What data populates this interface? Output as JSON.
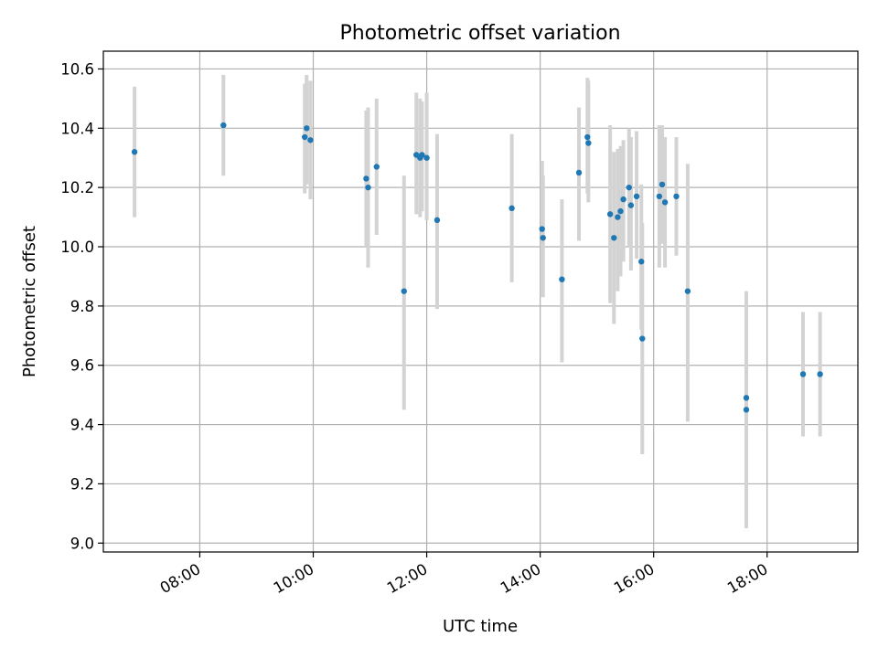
{
  "chart_data": {
    "type": "scatter",
    "title": "Photometric offset variation",
    "xlabel": "UTC time",
    "ylabel": "Photometric offset",
    "x_tick_labels": [
      "08:00",
      "10:00",
      "12:00",
      "14:00",
      "16:00",
      "18:00"
    ],
    "y_tick_labels": [
      "9.0",
      "9.2",
      "9.4",
      "9.6",
      "9.8",
      "10.0",
      "10.2",
      "10.4",
      "10.6"
    ],
    "x_ticks": [
      "08:00",
      "10:00",
      "12:00",
      "14:00",
      "16:00",
      "18:00"
    ],
    "y_ticks": [
      9.0,
      9.2,
      9.4,
      9.6,
      9.8,
      10.0,
      10.2,
      10.4,
      10.6
    ],
    "xlim": [
      "06:18",
      "19:36"
    ],
    "ylim": [
      8.97,
      10.66
    ],
    "grid": true,
    "colors": {
      "point": "#1f77b4",
      "errorbar": "#d3d3d3",
      "grid": "#b0b0b0"
    },
    "points": [
      {
        "x": "06:51",
        "y": 10.32,
        "err_low": 10.1,
        "err_high": 10.54
      },
      {
        "x": "08:25",
        "y": 10.41,
        "err_low": 10.24,
        "err_high": 10.58
      },
      {
        "x": "09:51",
        "y": 10.37,
        "err_low": 10.18,
        "err_high": 10.55
      },
      {
        "x": "09:53",
        "y": 10.4,
        "err_low": 10.21,
        "err_high": 10.58
      },
      {
        "x": "09:57",
        "y": 10.36,
        "err_low": 10.16,
        "err_high": 10.56
      },
      {
        "x": "10:56",
        "y": 10.23,
        "err_low": 10.0,
        "err_high": 10.46
      },
      {
        "x": "10:58",
        "y": 10.2,
        "err_low": 9.93,
        "err_high": 10.47
      },
      {
        "x": "11:07",
        "y": 10.27,
        "err_low": 10.04,
        "err_high": 10.5
      },
      {
        "x": "11:36",
        "y": 9.85,
        "err_low": 9.45,
        "err_high": 10.24
      },
      {
        "x": "11:49",
        "y": 10.31,
        "err_low": 10.11,
        "err_high": 10.52
      },
      {
        "x": "11:53",
        "y": 10.3,
        "err_low": 10.1,
        "err_high": 10.5
      },
      {
        "x": "11:55",
        "y": 10.31,
        "err_low": 10.12,
        "err_high": 10.49
      },
      {
        "x": "12:00",
        "y": 10.3,
        "err_low": 10.09,
        "err_high": 10.52
      },
      {
        "x": "12:11",
        "y": 10.09,
        "err_low": 9.79,
        "err_high": 10.38
      },
      {
        "x": "13:30",
        "y": 10.13,
        "err_low": 9.88,
        "err_high": 10.38
      },
      {
        "x": "14:02",
        "y": 10.06,
        "err_low": 9.83,
        "err_high": 10.29
      },
      {
        "x": "14:03",
        "y": 10.03,
        "err_low": 9.83,
        "err_high": 10.24
      },
      {
        "x": "14:23",
        "y": 9.89,
        "err_low": 9.61,
        "err_high": 10.16
      },
      {
        "x": "14:41",
        "y": 10.25,
        "err_low": 10.02,
        "err_high": 10.47
      },
      {
        "x": "14:50",
        "y": 10.37,
        "err_low": 10.18,
        "err_high": 10.57
      },
      {
        "x": "14:51",
        "y": 10.35,
        "err_low": 10.15,
        "err_high": 10.56
      },
      {
        "x": "15:14",
        "y": 10.11,
        "err_low": 9.81,
        "err_high": 10.41
      },
      {
        "x": "15:18",
        "y": 10.03,
        "err_low": 9.74,
        "err_high": 10.32
      },
      {
        "x": "15:22",
        "y": 10.1,
        "err_low": 9.85,
        "err_high": 10.33
      },
      {
        "x": "15:25",
        "y": 10.12,
        "err_low": 9.9,
        "err_high": 10.34
      },
      {
        "x": "15:28",
        "y": 10.16,
        "err_low": 9.95,
        "err_high": 10.36
      },
      {
        "x": "15:34",
        "y": 10.2,
        "err_low": 10.0,
        "err_high": 10.4
      },
      {
        "x": "15:36",
        "y": 10.14,
        "err_low": 9.92,
        "err_high": 10.37
      },
      {
        "x": "15:42",
        "y": 10.17,
        "err_low": 9.96,
        "err_high": 10.39
      },
      {
        "x": "15:47",
        "y": 9.95,
        "err_low": 9.72,
        "err_high": 10.21
      },
      {
        "x": "15:48",
        "y": 9.69,
        "err_low": 9.3,
        "err_high": 10.08
      },
      {
        "x": "16:06",
        "y": 10.17,
        "err_low": 9.93,
        "err_high": 10.41
      },
      {
        "x": "16:09",
        "y": 10.21,
        "err_low": 10.01,
        "err_high": 10.41
      },
      {
        "x": "16:12",
        "y": 10.15,
        "err_low": 9.93,
        "err_high": 10.37
      },
      {
        "x": "16:24",
        "y": 10.17,
        "err_low": 9.97,
        "err_high": 10.37
      },
      {
        "x": "16:36",
        "y": 9.85,
        "err_low": 9.41,
        "err_high": 10.28
      },
      {
        "x": "17:38",
        "y": 9.49,
        "err_low": 9.13,
        "err_high": 9.84
      },
      {
        "x": "17:38",
        "y": 9.45,
        "err_low": 9.05,
        "err_high": 9.85
      },
      {
        "x": "18:38",
        "y": 9.57,
        "err_low": 9.36,
        "err_high": 9.78
      },
      {
        "x": "18:56",
        "y": 9.57,
        "err_low": 9.36,
        "err_high": 9.78
      }
    ]
  }
}
